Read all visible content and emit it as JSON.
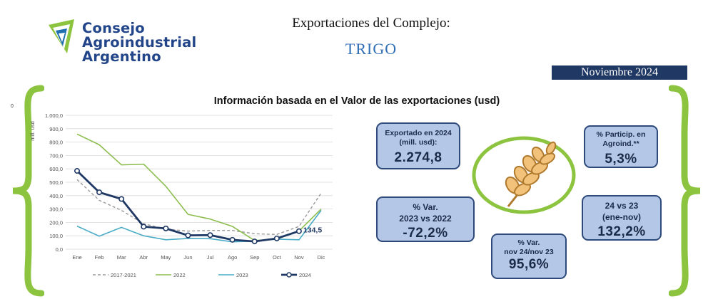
{
  "header": {
    "logo": [
      "Consejo",
      "Agroindustrial",
      "Argentino"
    ],
    "title": "Exportaciones del Complejo:",
    "product": "TRIGO",
    "period": "Noviembre 2024"
  },
  "section_title": "Información basada en el Valor de las exportaciones (usd)",
  "stray_label": "0",
  "kpis": {
    "exported": {
      "label_lines": [
        "Exportado en 2024",
        "(mill. usd):"
      ],
      "value": "2.274,8"
    },
    "share": {
      "label_lines": [
        "% Particip. en",
        "Agroind.**"
      ],
      "value": "5,3%"
    },
    "var_2023": {
      "label_lines": [
        "% Var.",
        "2023 vs 2022"
      ],
      "value": "-72,2%"
    },
    "var_24_23": {
      "label_lines": [
        "24 vs 23",
        "(ene-nov)"
      ],
      "value": "132,2%"
    },
    "var_nov": {
      "label_lines": [
        "% Var.",
        "nov 24/nov 23"
      ],
      "value": "95,6%"
    }
  },
  "colors": {
    "brand_blue": "#22458a",
    "brand_green": "#8cc43f",
    "kpi_fill": "#b4c7e7",
    "kpi_border": "#2e4a7a",
    "band": "#1f3864"
  },
  "icons": {
    "logo": "leaf-logo-icon",
    "wheat": "wheat-icon"
  },
  "chart_data": {
    "type": "line",
    "ylabel": "mill. usd",
    "categories": [
      "Ene",
      "Feb",
      "Mar",
      "Abr",
      "May",
      "Jun",
      "Jul",
      "Ago",
      "Sep",
      "Oct",
      "Nov",
      "Dic"
    ],
    "ylim": [
      0,
      1000
    ],
    "yticks": [
      "0,0",
      "100,0",
      "200,0",
      "300,0",
      "400,0",
      "500,0",
      "600,0",
      "700,0",
      "800,0",
      "900,0",
      "1.000,0"
    ],
    "grid": true,
    "legend_position": "bottom",
    "series": [
      {
        "name": "2017-2021",
        "color": "#9a9a9a",
        "dash": "4,3",
        "width": 1.4,
        "values": [
          520,
          365,
          290,
          190,
          150,
          135,
          140,
          140,
          115,
          110,
          170,
          420
        ]
      },
      {
        "name": "2022",
        "color": "#8cbd4e",
        "dash": "",
        "width": 1.6,
        "values": [
          860,
          780,
          630,
          635,
          470,
          260,
          225,
          170,
          65,
          75,
          135,
          300
        ]
      },
      {
        "name": "2023",
        "color": "#4bacc6",
        "dash": "",
        "width": 1.6,
        "values": [
          172,
          97,
          163,
          100,
          70,
          80,
          78,
          55,
          60,
          75,
          70,
          290
        ]
      },
      {
        "name": "2024",
        "color": "#1f3864",
        "dash": "",
        "width": 2.8,
        "markers": true,
        "values": [
          585,
          425,
          375,
          168,
          155,
          103,
          105,
          70,
          58,
          80,
          134.5,
          null
        ]
      }
    ],
    "annotations": [
      {
        "series": "2024",
        "category": "Nov",
        "text": "134,5"
      }
    ]
  }
}
